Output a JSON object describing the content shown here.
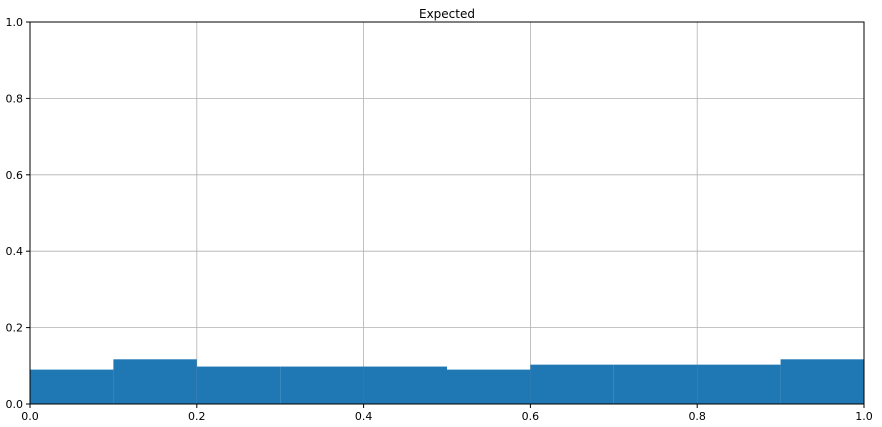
{
  "chart_data": {
    "type": "bar",
    "title": "Expected",
    "xlabel": "",
    "ylabel": "",
    "xlim": [
      0,
      1
    ],
    "ylim": [
      0,
      1
    ],
    "grid": true,
    "bar_color": "#1f77b4",
    "bins": [
      {
        "x0": 0.0,
        "x1": 0.1,
        "value": 0.09
      },
      {
        "x0": 0.1,
        "x1": 0.2,
        "value": 0.117
      },
      {
        "x0": 0.2,
        "x1": 0.3,
        "value": 0.098
      },
      {
        "x0": 0.3,
        "x1": 0.4,
        "value": 0.098
      },
      {
        "x0": 0.4,
        "x1": 0.5,
        "value": 0.098
      },
      {
        "x0": 0.5,
        "x1": 0.6,
        "value": 0.09
      },
      {
        "x0": 0.6,
        "x1": 0.7,
        "value": 0.103
      },
      {
        "x0": 0.7,
        "x1": 0.8,
        "value": 0.103
      },
      {
        "x0": 0.8,
        "x1": 0.9,
        "value": 0.103
      },
      {
        "x0": 0.9,
        "x1": 1.0,
        "value": 0.117
      }
    ],
    "xticks": [
      {
        "value": 0.0,
        "label": "0.0"
      },
      {
        "value": 0.2,
        "label": "0.2"
      },
      {
        "value": 0.4,
        "label": "0.4"
      },
      {
        "value": 0.6,
        "label": "0.6"
      },
      {
        "value": 0.8,
        "label": "0.8"
      },
      {
        "value": 1.0,
        "label": "1.0"
      }
    ],
    "yticks": [
      {
        "value": 0.0,
        "label": "0.0"
      },
      {
        "value": 0.2,
        "label": "0.2"
      },
      {
        "value": 0.4,
        "label": "0.4"
      },
      {
        "value": 0.6,
        "label": "0.6"
      },
      {
        "value": 0.8,
        "label": "0.8"
      },
      {
        "value": 1.0,
        "label": "1.0"
      }
    ]
  }
}
